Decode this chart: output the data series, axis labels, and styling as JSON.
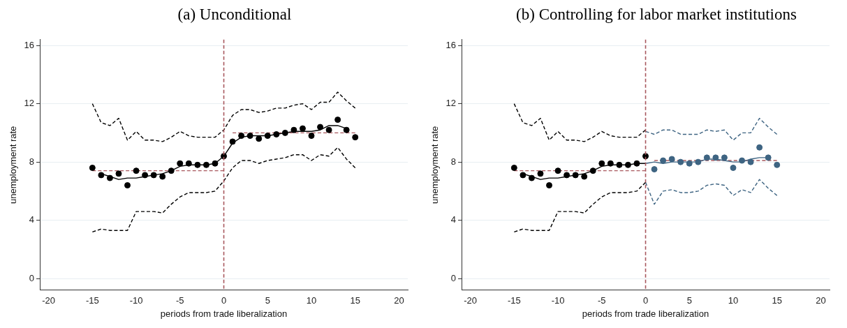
{
  "chart_data": [
    {
      "type": "scatter",
      "title": "(a) Unconditional",
      "xlabel": "periods from trade liberalization",
      "ylabel": "unemployment rate",
      "xlim": [
        -21,
        21
      ],
      "xticks": [
        -20,
        -15,
        -10,
        -5,
        0,
        5,
        10,
        15,
        20
      ],
      "ylim": [
        -0.8,
        16.4
      ],
      "yticks": [
        0,
        4,
        8,
        12,
        16
      ],
      "grid": "y",
      "ref_lines": [
        {
          "axis": "x",
          "value": 0,
          "color": "#a8585e",
          "line_style": "dashed"
        }
      ],
      "series": [
        {
          "marker": "circle",
          "color": "#000000",
          "x": [
            -15,
            -14,
            -13,
            -12,
            -11,
            -10,
            -9,
            -8,
            -7,
            -6,
            -5,
            -4,
            -3,
            -2,
            -1,
            0,
            1,
            2,
            3,
            4,
            5,
            6,
            7,
            8,
            9,
            10,
            11,
            12,
            13,
            14,
            15
          ],
          "values": [
            7.6,
            7.1,
            6.9,
            7.2,
            6.4,
            7.4,
            7.1,
            7.1,
            7.0,
            7.4,
            7.9,
            7.9,
            7.8,
            7.8,
            7.9,
            8.4,
            9.4,
            9.8,
            9.8,
            9.6,
            9.8,
            9.9,
            10.0,
            10.2,
            10.3,
            9.8,
            10.4,
            10.2,
            10.9,
            10.2,
            9.7
          ]
        },
        {
          "type": "line",
          "line_style": "solid",
          "color": "#000000",
          "x": [
            -14,
            -13,
            -12,
            -11,
            -10,
            -9,
            -8,
            -7,
            -6,
            -5,
            -4,
            -3,
            -2,
            -1,
            0,
            1,
            2,
            3,
            4,
            5,
            6,
            7,
            8,
            9,
            10,
            11,
            12,
            13,
            14
          ],
          "values": [
            7.2,
            7.0,
            6.8,
            6.9,
            6.9,
            7.0,
            7.1,
            7.2,
            7.4,
            7.7,
            7.8,
            7.8,
            7.8,
            7.9,
            8.4,
            9.3,
            9.7,
            9.8,
            9.8,
            9.8,
            9.9,
            10.0,
            10.1,
            10.1,
            10.1,
            10.2,
            10.5,
            10.5,
            10.3
          ]
        },
        {
          "type": "line",
          "line_style": "dashed",
          "color": "#000000",
          "x": [
            -15,
            -14,
            -13,
            -12,
            -11,
            -10,
            -9,
            -8,
            -7,
            -6,
            -5,
            -4,
            -3,
            -2,
            -1,
            0,
            1,
            2,
            3,
            4,
            5,
            6,
            7,
            8,
            9,
            10,
            11,
            12,
            13,
            14,
            15
          ],
          "values": [
            12.0,
            10.7,
            10.5,
            11.0,
            9.5,
            10.1,
            9.5,
            9.5,
            9.4,
            9.7,
            10.1,
            9.8,
            9.7,
            9.7,
            9.7,
            10.2,
            11.2,
            11.6,
            11.6,
            11.4,
            11.5,
            11.7,
            11.7,
            11.9,
            12.0,
            11.6,
            12.1,
            12.1,
            12.8,
            12.2,
            11.7
          ]
        },
        {
          "type": "line",
          "line_style": "dashed",
          "color": "#000000",
          "x": [
            -15,
            -14,
            -13,
            -12,
            -11,
            -10,
            -9,
            -8,
            -7,
            -6,
            -5,
            -4,
            -3,
            -2,
            -1,
            0,
            1,
            2,
            3,
            4,
            5,
            6,
            7,
            8,
            9,
            10,
            11,
            12,
            13,
            14,
            15
          ],
          "values": [
            3.2,
            3.4,
            3.3,
            3.3,
            3.3,
            4.6,
            4.6,
            4.6,
            4.5,
            5.1,
            5.6,
            5.9,
            5.9,
            5.9,
            6.0,
            6.7,
            7.6,
            8.1,
            8.1,
            7.9,
            8.1,
            8.2,
            8.3,
            8.5,
            8.5,
            8.1,
            8.5,
            8.4,
            9.0,
            8.2,
            7.6
          ]
        },
        {
          "type": "line",
          "line_style": "dashed",
          "color": "#a8585e",
          "x": [
            -15,
            0
          ],
          "values": [
            7.4,
            7.4
          ]
        },
        {
          "type": "line",
          "line_style": "dashed",
          "color": "#a8585e",
          "x": [
            1,
            15
          ],
          "values": [
            10.0,
            10.0
          ]
        }
      ]
    },
    {
      "type": "scatter",
      "title": "(b) Controlling for labor market institutions",
      "xlabel": "periods from trade liberalization",
      "ylabel": "unemployment rate",
      "xlim": [
        -21,
        21
      ],
      "xticks": [
        -20,
        -15,
        -10,
        -5,
        0,
        5,
        10,
        15,
        20
      ],
      "ylim": [
        -0.8,
        16.4
      ],
      "yticks": [
        0,
        4,
        8,
        12,
        16
      ],
      "grid": "y",
      "ref_lines": [
        {
          "axis": "x",
          "value": 0,
          "color": "#a8585e",
          "line_style": "dashed"
        }
      ],
      "series": [
        {
          "marker": "circle",
          "color": "#000000",
          "x": [
            -15,
            -14,
            -13,
            -12,
            -11,
            -10,
            -9,
            -8,
            -7,
            -6,
            -5,
            -4,
            -3,
            -2,
            -1,
            0
          ],
          "values": [
            7.6,
            7.1,
            6.9,
            7.2,
            6.4,
            7.4,
            7.1,
            7.1,
            7.0,
            7.4,
            7.9,
            7.9,
            7.8,
            7.8,
            7.9,
            8.4
          ]
        },
        {
          "type": "line",
          "line_style": "solid",
          "color": "#000000",
          "x": [
            -14,
            -13,
            -12,
            -11,
            -10,
            -9,
            -8,
            -7,
            -6,
            -5,
            -4,
            -3,
            -2,
            -1,
            0
          ],
          "values": [
            7.2,
            7.0,
            6.8,
            6.9,
            6.9,
            7.0,
            7.1,
            7.2,
            7.4,
            7.7,
            7.8,
            7.8,
            7.8,
            7.9,
            7.9
          ]
        },
        {
          "type": "line",
          "line_style": "dashed",
          "color": "#000000",
          "x": [
            -15,
            -14,
            -13,
            -12,
            -11,
            -10,
            -9,
            -8,
            -7,
            -6,
            -5,
            -4,
            -3,
            -2,
            -1,
            0
          ],
          "values": [
            12.0,
            10.7,
            10.5,
            11.0,
            9.5,
            10.1,
            9.5,
            9.5,
            9.4,
            9.7,
            10.1,
            9.8,
            9.7,
            9.7,
            9.7,
            10.2
          ]
        },
        {
          "type": "line",
          "line_style": "dashed",
          "color": "#000000",
          "x": [
            -15,
            -14,
            -13,
            -12,
            -11,
            -10,
            -9,
            -8,
            -7,
            -6,
            -5,
            -4,
            -3,
            -2,
            -1,
            0
          ],
          "values": [
            3.2,
            3.4,
            3.3,
            3.3,
            3.3,
            4.6,
            4.6,
            4.6,
            4.5,
            5.1,
            5.6,
            5.9,
            5.9,
            5.9,
            6.0,
            6.6
          ]
        },
        {
          "marker": "circle",
          "color": "#3e6482",
          "x": [
            1,
            2,
            3,
            4,
            5,
            6,
            7,
            8,
            9,
            10,
            11,
            12,
            13,
            14,
            15
          ],
          "values": [
            7.5,
            8.1,
            8.2,
            8.0,
            7.9,
            8.0,
            8.3,
            8.3,
            8.3,
            7.6,
            8.1,
            8.0,
            9.0,
            8.3,
            7.8
          ]
        },
        {
          "type": "line",
          "line_style": "solid",
          "color": "#3e6482",
          "x": [
            0,
            1,
            2,
            3,
            4,
            5,
            6,
            7,
            8,
            9,
            10,
            11,
            12,
            13,
            14
          ],
          "values": [
            7.9,
            8.0,
            7.9,
            8.0,
            8.0,
            8.0,
            8.0,
            8.2,
            8.2,
            8.1,
            8.0,
            8.0,
            8.2,
            8.3,
            8.3
          ]
        },
        {
          "type": "line",
          "line_style": "dashed",
          "color": "#3e6482",
          "x": [
            0,
            1,
            2,
            3,
            4,
            5,
            6,
            7,
            8,
            9,
            10,
            11,
            12,
            13,
            14,
            15
          ],
          "values": [
            10.1,
            9.9,
            10.2,
            10.2,
            9.9,
            9.9,
            9.9,
            10.2,
            10.1,
            10.2,
            9.5,
            10.0,
            10.0,
            11.0,
            10.4,
            9.9
          ]
        },
        {
          "type": "line",
          "line_style": "dashed",
          "color": "#3e6482",
          "x": [
            0,
            1,
            2,
            3,
            4,
            5,
            6,
            7,
            8,
            9,
            10,
            11,
            12,
            13,
            14,
            15
          ],
          "values": [
            6.6,
            5.1,
            6.0,
            6.1,
            5.9,
            5.9,
            6.0,
            6.4,
            6.5,
            6.4,
            5.7,
            6.1,
            5.9,
            6.8,
            6.2,
            5.7
          ]
        },
        {
          "type": "line",
          "line_style": "dashed",
          "color": "#a8585e",
          "x": [
            -15,
            0
          ],
          "values": [
            7.4,
            7.4
          ]
        },
        {
          "type": "line",
          "line_style": "dashed",
          "color": "#a8585e",
          "x": [
            1,
            15
          ],
          "values": [
            8.1,
            8.1
          ]
        }
      ]
    }
  ]
}
